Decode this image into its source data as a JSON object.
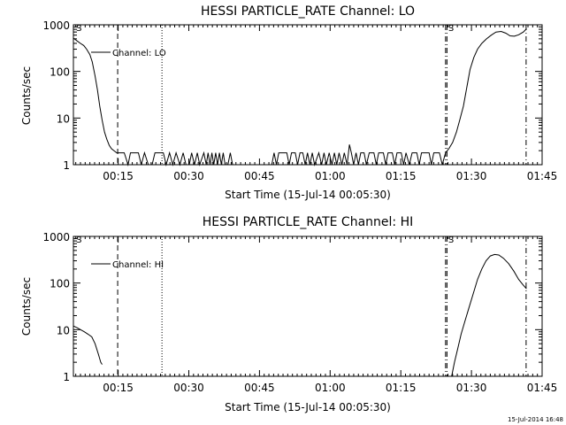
{
  "footer_timestamp": "15-Jul-2014 16:48",
  "chart_data": [
    {
      "type": "line",
      "title": "HESSI PARTICLE_RATE Channel: LO",
      "xlabel": "Start Time (15-Jul-14 00:05:30)",
      "ylabel": "Counts/sec",
      "x_unit": "minutes after 00:00 UT",
      "xlim": [
        5.5,
        105
      ],
      "ylim": [
        1,
        1000
      ],
      "yscale": "log",
      "x_ticks": [
        {
          "x": 15,
          "label": "00:15"
        },
        {
          "x": 30,
          "label": "00:30"
        },
        {
          "x": 45,
          "label": "00:45"
        },
        {
          "x": 60,
          "label": "01:00"
        },
        {
          "x": 75,
          "label": "01:15"
        },
        {
          "x": 90,
          "label": "01:30"
        },
        {
          "x": 105,
          "label": "01:45"
        }
      ],
      "y_ticks": [
        {
          "y": 1,
          "label": "1"
        },
        {
          "y": 10,
          "label": "10"
        },
        {
          "y": 100,
          "label": "100"
        },
        {
          "y": 1000,
          "label": "1000"
        }
      ],
      "vlines": [
        {
          "x": 14.9,
          "style": "dashed"
        },
        {
          "x": 24.3,
          "style": "dotted"
        },
        {
          "x": 84.5,
          "style": "dashdot"
        },
        {
          "x": 84.8,
          "style": "dashdot"
        },
        {
          "x": 101.6,
          "style": "dashdot"
        }
      ],
      "markers": [
        {
          "x": 5.9,
          "label": "S"
        },
        {
          "x": 84.9,
          "label": "S"
        }
      ],
      "series": [
        {
          "name": "Channel: LO",
          "segments": [
            [
              [
                5.5,
                520
              ],
              [
                6.3,
                450
              ],
              [
                7,
                400
              ],
              [
                7.7,
                360
              ],
              [
                8.3,
                300
              ],
              [
                9,
                230
              ],
              [
                9.5,
                160
              ],
              [
                10.1,
                80
              ],
              [
                10.6,
                40
              ],
              [
                11.1,
                18
              ],
              [
                11.6,
                9
              ],
              [
                12.1,
                5
              ],
              [
                12.6,
                3.5
              ],
              [
                13.1,
                2.6
              ],
              [
                13.6,
                2.2
              ],
              [
                14.1,
                2.0
              ],
              [
                14.7,
                1.8
              ],
              [
                15.3,
                1.8
              ],
              [
                16.3,
                1.8
              ],
              [
                17.1,
                1
              ],
              [
                17.6,
                1.8
              ],
              [
                19.3,
                1.8
              ],
              [
                19.9,
                1
              ],
              [
                20.6,
                1.8
              ],
              [
                21.4,
                1
              ],
              [
                22.2,
                1
              ],
              [
                22.8,
                1.8
              ],
              [
                24.6,
                1.8
              ],
              [
                25.2,
                1
              ],
              [
                25.9,
                1.8
              ],
              [
                26.6,
                1
              ],
              [
                27.3,
                1.8
              ],
              [
                28.1,
                1
              ],
              [
                28.8,
                1.8
              ],
              [
                29.4,
                1
              ],
              [
                30.1,
                1
              ],
              [
                30.6,
                1.8
              ],
              [
                31.2,
                1
              ],
              [
                31.8,
                1.8
              ],
              [
                32.3,
                1
              ],
              [
                33.2,
                1.8
              ],
              [
                33.7,
                1
              ],
              [
                34.1,
                1.8
              ],
              [
                34.5,
                1
              ],
              [
                34.9,
                1.8
              ],
              [
                35.3,
                1
              ],
              [
                35.7,
                1.8
              ],
              [
                36.1,
                1
              ],
              [
                36.5,
                1.8
              ],
              [
                36.9,
                1
              ],
              [
                37.3,
                1.8
              ],
              [
                37.7,
                1
              ],
              [
                38.3,
                1
              ],
              [
                38.8,
                1.8
              ],
              [
                39.3,
                1
              ],
              [
                39.9,
                1
              ],
              [
                40.4,
                1
              ],
              [
                40.9,
                1
              ],
              [
                41.5,
                1
              ],
              [
                42,
                1
              ],
              [
                43,
                1
              ],
              [
                44,
                1
              ],
              [
                45,
                1
              ],
              [
                46,
                1
              ],
              [
                47.6,
                1
              ],
              [
                48.1,
                1.8
              ],
              [
                48.6,
                1
              ],
              [
                49.1,
                1.8
              ],
              [
                50.8,
                1.8
              ],
              [
                51.3,
                1
              ],
              [
                51.8,
                1.8
              ],
              [
                52.6,
                1.8
              ],
              [
                53.1,
                1
              ],
              [
                53.6,
                1.8
              ],
              [
                54.2,
                1.8
              ],
              [
                54.7,
                1
              ],
              [
                55.2,
                1.8
              ],
              [
                55.7,
                1
              ],
              [
                56.2,
                1.8
              ],
              [
                56.7,
                1
              ],
              [
                57.6,
                1.8
              ],
              [
                58.2,
                1
              ],
              [
                58.7,
                1.8
              ],
              [
                59.2,
                1
              ],
              [
                59.8,
                1.8
              ],
              [
                60.4,
                1
              ],
              [
                60.9,
                1.8
              ],
              [
                61.4,
                1
              ],
              [
                61.9,
                1.8
              ],
              [
                62.5,
                1
              ],
              [
                63,
                1.8
              ],
              [
                63.6,
                1
              ],
              [
                64.1,
                2.7
              ],
              [
                64.5,
                1.8
              ],
              [
                65,
                1
              ],
              [
                65.5,
                1.8
              ],
              [
                66,
                1
              ],
              [
                66.5,
                1.8
              ],
              [
                67.2,
                1.8
              ],
              [
                67.7,
                1
              ],
              [
                68.3,
                1.8
              ],
              [
                69.3,
                1.8
              ],
              [
                69.8,
                1
              ],
              [
                70.3,
                1.8
              ],
              [
                71.3,
                1.8
              ],
              [
                71.8,
                1
              ],
              [
                72.3,
                1.8
              ],
              [
                73.2,
                1.8
              ],
              [
                73.7,
                1
              ],
              [
                74.2,
                1.8
              ],
              [
                75.1,
                1.8
              ],
              [
                75.6,
                1
              ],
              [
                76.1,
                1.8
              ],
              [
                76.8,
                1
              ],
              [
                77.4,
                1.8
              ],
              [
                78.4,
                1.8
              ],
              [
                78.9,
                1
              ],
              [
                79.4,
                1.8
              ],
              [
                81,
                1.8
              ],
              [
                81.5,
                1
              ],
              [
                82,
                1.8
              ],
              [
                83.2,
                1.8
              ],
              [
                83.8,
                1
              ],
              [
                84.5,
                1.8
              ],
              [
                85.2,
                2.2
              ],
              [
                86,
                3
              ],
              [
                86.8,
                5
              ],
              [
                87.5,
                9
              ],
              [
                88.3,
                18
              ],
              [
                89,
                45
              ],
              [
                89.7,
                110
              ],
              [
                90.5,
                200
              ],
              [
                91.3,
                300
              ],
              [
                92.2,
                400
              ],
              [
                93.2,
                500
              ],
              [
                94.2,
                600
              ],
              [
                95.2,
                700
              ],
              [
                96.3,
                720
              ],
              [
                97.3,
                660
              ],
              [
                98.2,
                580
              ],
              [
                99.1,
                570
              ],
              [
                100,
                610
              ],
              [
                101,
                700
              ],
              [
                101.7,
                820
              ]
            ]
          ]
        }
      ],
      "legend_position": "upper-left"
    },
    {
      "type": "line",
      "title": "HESSI PARTICLE_RATE Channel: HI",
      "xlabel": "Start Time (15-Jul-14 00:05:30)",
      "ylabel": "Counts/sec",
      "x_unit": "minutes after 00:00 UT",
      "xlim": [
        5.5,
        105
      ],
      "ylim": [
        1,
        1000
      ],
      "yscale": "log",
      "x_ticks": [
        {
          "x": 15,
          "label": "00:15"
        },
        {
          "x": 30,
          "label": "00:30"
        },
        {
          "x": 45,
          "label": "00:45"
        },
        {
          "x": 60,
          "label": "01:00"
        },
        {
          "x": 75,
          "label": "01:15"
        },
        {
          "x": 90,
          "label": "01:30"
        },
        {
          "x": 105,
          "label": "01:45"
        }
      ],
      "y_ticks": [
        {
          "y": 1,
          "label": "1"
        },
        {
          "y": 10,
          "label": "10"
        },
        {
          "y": 100,
          "label": "100"
        },
        {
          "y": 1000,
          "label": "1000"
        }
      ],
      "vlines": [
        {
          "x": 14.9,
          "style": "dashed"
        },
        {
          "x": 24.3,
          "style": "dotted"
        },
        {
          "x": 84.5,
          "style": "dashdot"
        },
        {
          "x": 84.8,
          "style": "dashdot"
        },
        {
          "x": 101.6,
          "style": "dashdot"
        }
      ],
      "markers": [
        {
          "x": 5.9,
          "label": "S"
        },
        {
          "x": 84.9,
          "label": "S"
        }
      ],
      "series": [
        {
          "name": "Channel: HI",
          "segments": [
            [
              [
                5.5,
                12
              ],
              [
                6.3,
                11
              ],
              [
                7,
                10
              ],
              [
                7.8,
                9
              ],
              [
                8.6,
                8
              ],
              [
                9.4,
                7
              ],
              [
                10.1,
                5
              ],
              [
                10.8,
                3
              ],
              [
                11.3,
                2
              ],
              [
                11.6,
                1.8
              ]
            ],
            [
              [
                85.8,
                1
              ],
              [
                86.4,
                2
              ],
              [
                87.1,
                4
              ],
              [
                87.8,
                8
              ],
              [
                88.6,
                15
              ],
              [
                89.5,
                30
              ],
              [
                90.4,
                60
              ],
              [
                91.3,
                120
              ],
              [
                92.2,
                200
              ],
              [
                93.1,
                300
              ],
              [
                94,
                380
              ],
              [
                94.9,
                410
              ],
              [
                95.8,
                400
              ],
              [
                96.8,
                340
              ],
              [
                97.9,
                260
              ],
              [
                99,
                180
              ],
              [
                100,
                120
              ],
              [
                101,
                90
              ],
              [
                101.7,
                75
              ]
            ]
          ]
        }
      ],
      "legend_position": "upper-left"
    }
  ]
}
